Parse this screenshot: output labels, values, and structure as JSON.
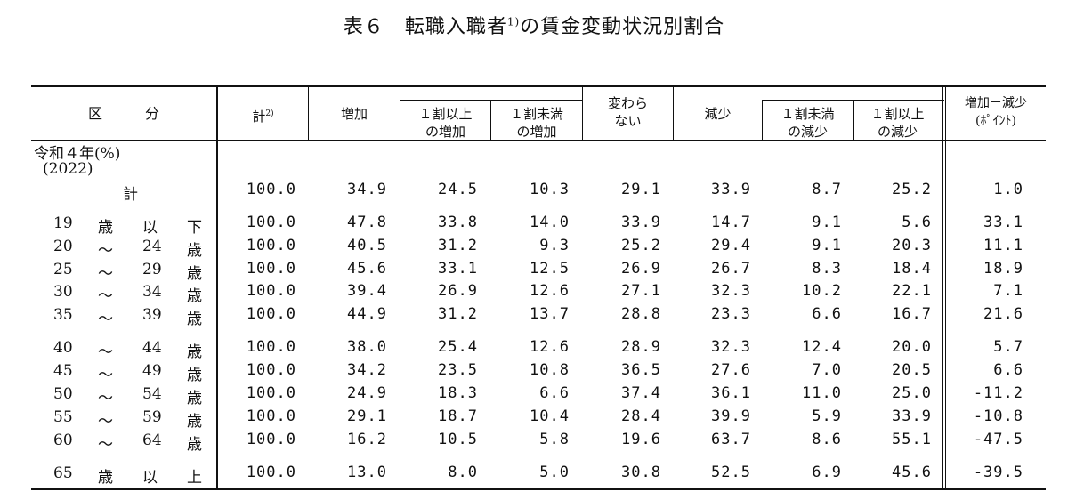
{
  "title": {
    "main": "表６　転職入職者",
    "sup": "1)",
    "rest": "の賃金変動状況別割合"
  },
  "headers": {
    "kubun": "区　　　分",
    "kei": "計",
    "kei_sup": "2)",
    "zouka": "増加",
    "zouka_1wari_ijou": [
      "１割以上",
      "の増加"
    ],
    "zouka_1wari_miman": [
      "１割未満",
      "の増加"
    ],
    "kawaranai": [
      "変わら",
      "ない"
    ],
    "genshou": "減少",
    "genshou_1wari_miman": [
      "１割未満",
      "の減少"
    ],
    "genshou_1wari_ijou": [
      "１割以上",
      "の減少"
    ],
    "sa": [
      "増加－減少",
      "(ﾎﾟｲﾝﾄ)"
    ]
  },
  "year_label": "令和４年(%)",
  "year_sub": "(2022)",
  "rows": [
    {
      "label": [
        "",
        "計",
        "",
        ""
      ],
      "values": [
        "100.0",
        "34.9",
        "24.5",
        "10.3",
        "29.1",
        "33.9",
        "8.7",
        "25.2",
        "1.0"
      ]
    },
    {
      "label": [
        "19",
        "歳",
        "以",
        "下"
      ],
      "values": [
        "100.0",
        "47.8",
        "33.8",
        "14.0",
        "33.9",
        "14.7",
        "9.1",
        "5.6",
        "33.1"
      ]
    },
    {
      "label": [
        "20",
        "～",
        "24",
        "歳"
      ],
      "values": [
        "100.0",
        "40.5",
        "31.2",
        "9.3",
        "25.2",
        "29.4",
        "9.1",
        "20.3",
        "11.1"
      ]
    },
    {
      "label": [
        "25",
        "～",
        "29",
        "歳"
      ],
      "values": [
        "100.0",
        "45.6",
        "33.1",
        "12.5",
        "26.9",
        "26.7",
        "8.3",
        "18.4",
        "18.9"
      ]
    },
    {
      "label": [
        "30",
        "～",
        "34",
        "歳"
      ],
      "values": [
        "100.0",
        "39.4",
        "26.9",
        "12.6",
        "27.1",
        "32.3",
        "10.2",
        "22.1",
        "7.1"
      ]
    },
    {
      "label": [
        "35",
        "～",
        "39",
        "歳"
      ],
      "values": [
        "100.0",
        "44.9",
        "31.2",
        "13.7",
        "28.8",
        "23.3",
        "6.6",
        "16.7",
        "21.6"
      ]
    },
    {
      "label": [
        "40",
        "～",
        "44",
        "歳"
      ],
      "values": [
        "100.0",
        "38.0",
        "25.4",
        "12.6",
        "28.9",
        "32.3",
        "12.4",
        "20.0",
        "5.7"
      ]
    },
    {
      "label": [
        "45",
        "～",
        "49",
        "歳"
      ],
      "values": [
        "100.0",
        "34.2",
        "23.5",
        "10.8",
        "36.5",
        "27.6",
        "7.0",
        "20.5",
        "6.6"
      ]
    },
    {
      "label": [
        "50",
        "～",
        "54",
        "歳"
      ],
      "values": [
        "100.0",
        "24.9",
        "18.3",
        "6.6",
        "37.4",
        "36.1",
        "11.0",
        "25.0",
        "-11.2"
      ]
    },
    {
      "label": [
        "55",
        "～",
        "59",
        "歳"
      ],
      "values": [
        "100.0",
        "29.1",
        "18.7",
        "10.4",
        "28.4",
        "39.9",
        "5.9",
        "33.9",
        "-10.8"
      ]
    },
    {
      "label": [
        "60",
        "～",
        "64",
        "歳"
      ],
      "values": [
        "100.0",
        "16.2",
        "10.5",
        "5.8",
        "19.6",
        "63.7",
        "8.6",
        "55.1",
        "-47.5"
      ]
    },
    {
      "label": [
        "65",
        "歳",
        "以",
        "上"
      ],
      "values": [
        "100.0",
        "13.0",
        "8.0",
        "5.0",
        "30.8",
        "52.5",
        "6.9",
        "45.6",
        "-39.5"
      ]
    }
  ]
}
